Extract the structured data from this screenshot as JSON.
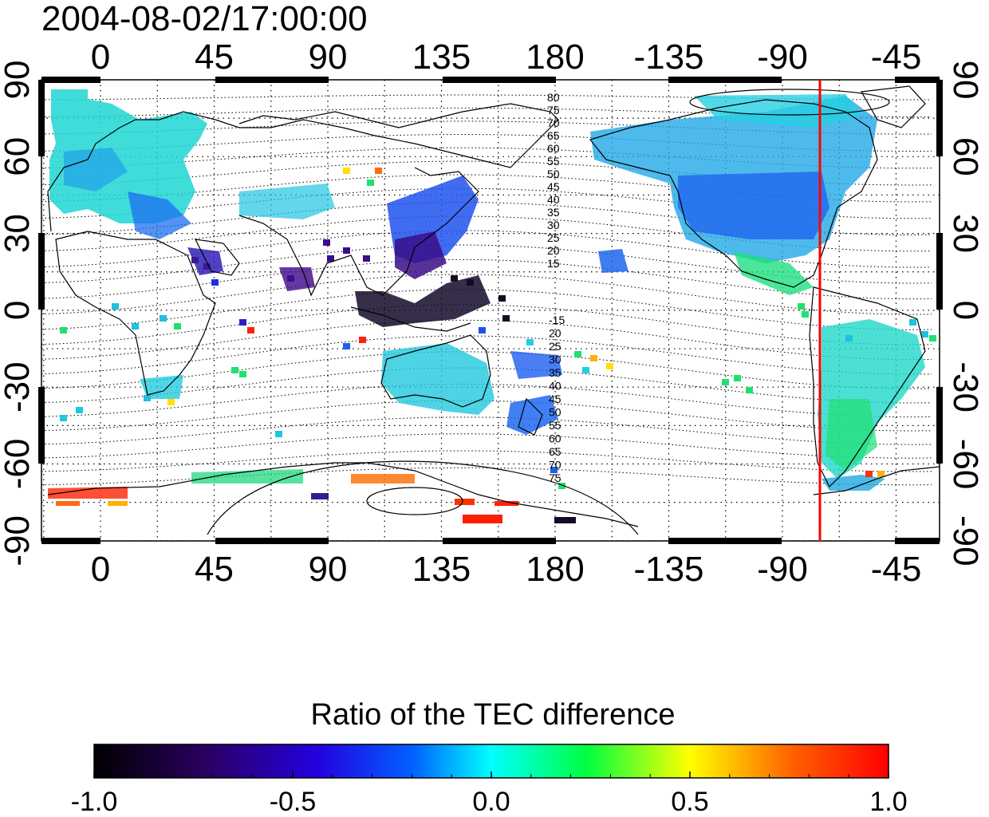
{
  "title": "2004-08-02/17:00:00",
  "map": {
    "lon_ticks": [
      "0",
      "45",
      "90",
      "135",
      "180",
      "-135",
      "-90",
      "-45"
    ],
    "lat_ticks_left": [
      "90",
      "60",
      "30",
      "0",
      "-30",
      "-60",
      "-90"
    ],
    "lat_ticks_right": [
      "90",
      "60",
      "30",
      "0",
      "-30",
      "-60",
      "-90"
    ],
    "contour_labels_north": [
      "80",
      "75",
      "70",
      "65",
      "60",
      "55",
      "50",
      "45",
      "40",
      "35",
      "30",
      "25",
      "20",
      "15"
    ],
    "contour_labels_south": [
      "-15",
      "20",
      "25",
      "30",
      "35",
      "40",
      "45",
      "50",
      "55",
      "60",
      "65",
      "70",
      "75"
    ],
    "marker_line_color": "#ff0000",
    "grid": "dotted"
  },
  "colorbar": {
    "title": "Ratio of the TEC difference",
    "tick_labels": [
      "-1.0",
      "-0.5",
      "0.0",
      "0.5",
      "1.0"
    ],
    "range": [
      -1.0,
      1.0
    ],
    "colormap": [
      "#000000",
      "#3a007a",
      "#1a2aff",
      "#00e0e0",
      "#00ff30",
      "#ffff00",
      "#ff7a00",
      "#ff0000"
    ]
  }
}
